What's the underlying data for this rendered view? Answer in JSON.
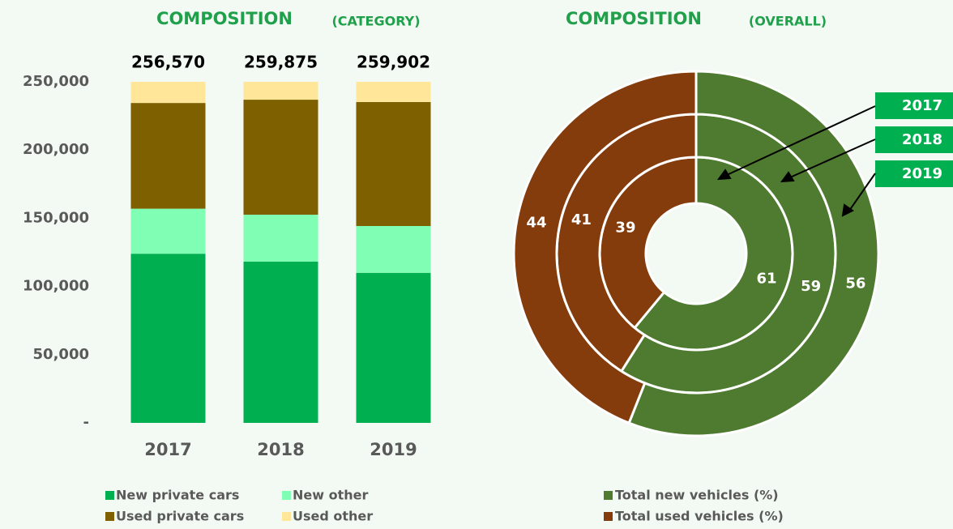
{
  "chart_data": [
    {
      "type": "stacked-bar",
      "title": "COMPOSITION",
      "subtitle": "(CATEGORY)",
      "categories": [
        "2017",
        "2018",
        "2019"
      ],
      "series": [
        {
          "name": "New private cars",
          "color": "#00b050",
          "values": [
            124000,
            118200,
            110000
          ]
        },
        {
          "name": "New other",
          "color": "#80ffb4",
          "values": [
            33000,
            34400,
            34300
          ]
        },
        {
          "name": "Used private cars",
          "color": "#7f6000",
          "values": [
            77500,
            84300,
            90900
          ]
        },
        {
          "name": "Used other",
          "color": "#ffe699",
          "values": [
            22070,
            22975,
            24702
          ]
        }
      ],
      "totals": {
        "values": [
          256570,
          259875,
          259902
        ],
        "value_labels": [
          "256,570",
          "259,875",
          "259,902"
        ]
      },
      "ylim": [
        0,
        250000
      ],
      "yticks": [
        {
          "value": 0,
          "label": "-"
        },
        {
          "value": 50000,
          "label": "50,000"
        },
        {
          "value": 100000,
          "label": "100,000"
        },
        {
          "value": 150000,
          "label": "150,000"
        },
        {
          "value": 200000,
          "label": "200,000"
        },
        {
          "value": 250000,
          "label": "250,000"
        }
      ]
    },
    {
      "type": "donut",
      "title": "COMPOSITION",
      "subtitle": "(OVERALL)",
      "categories": [
        "2017",
        "2018",
        "2019"
      ],
      "series": [
        {
          "name": "Total new vehicles (%)",
          "color": "#4e7b30",
          "values": [
            61,
            59,
            56
          ]
        },
        {
          "name": "Total used vehicles (%)",
          "color": "#843c0c",
          "values": [
            39,
            41,
            44
          ]
        }
      ]
    }
  ]
}
